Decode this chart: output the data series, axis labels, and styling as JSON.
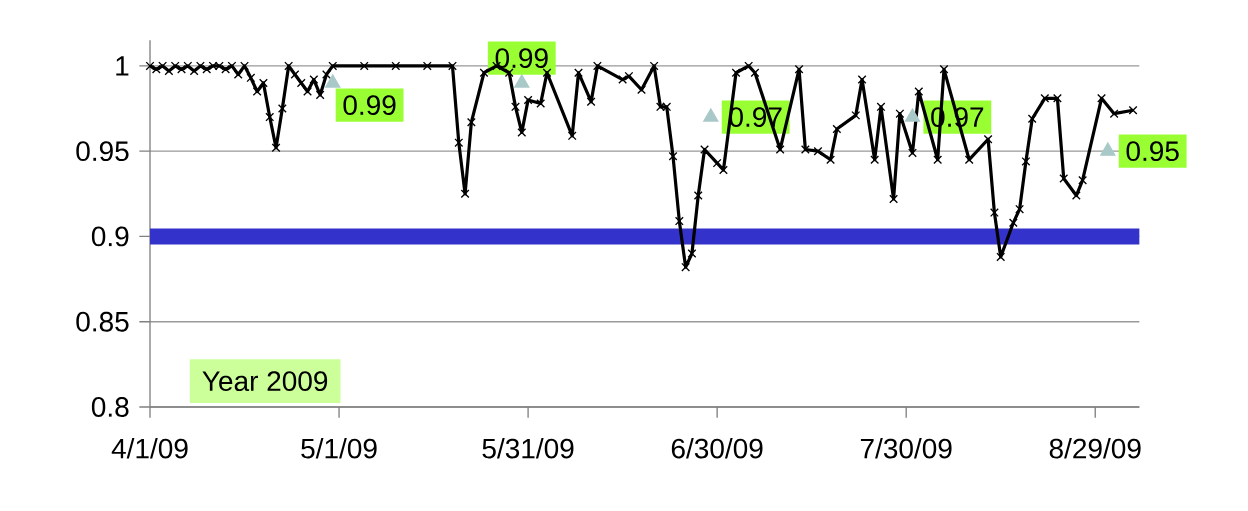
{
  "chart_data": {
    "type": "line",
    "xlim": [
      "2009-04-01",
      "2009-09-05"
    ],
    "xticks": [
      {
        "value": "2009-04-01",
        "label": "4/1/09"
      },
      {
        "value": "2009-05-01",
        "label": "5/1/09"
      },
      {
        "value": "2009-05-31",
        "label": "5/31/09"
      },
      {
        "value": "2009-06-30",
        "label": "6/30/09"
      },
      {
        "value": "2009-07-30",
        "label": "7/30/09"
      },
      {
        "value": "2009-08-29",
        "label": "8/29/09"
      }
    ],
    "ylim": [
      0.8,
      1.015
    ],
    "yticks": [
      0.8,
      0.85,
      0.9,
      0.95,
      1
    ],
    "grid": "y",
    "series": [
      {
        "color": "#000000",
        "marker": "cross",
        "line_style": "solid",
        "x": [
          "2009-04-01",
          "2009-04-02",
          "2009-04-03",
          "2009-04-04",
          "2009-04-05",
          "2009-04-06",
          "2009-04-07",
          "2009-04-08",
          "2009-04-09",
          "2009-04-10",
          "2009-04-11",
          "2009-04-12",
          "2009-04-13",
          "2009-04-14",
          "2009-04-15",
          "2009-04-16",
          "2009-04-17",
          "2009-04-18",
          "2009-04-19",
          "2009-04-20",
          "2009-04-21",
          "2009-04-22",
          "2009-04-23",
          "2009-04-24",
          "2009-04-25",
          "2009-04-26",
          "2009-04-27",
          "2009-04-28",
          "2009-04-29",
          "2009-04-30",
          "2009-05-05",
          "2009-05-10",
          "2009-05-15",
          "2009-05-19",
          "2009-05-20",
          "2009-05-21",
          "2009-05-22",
          "2009-05-24",
          "2009-05-26",
          "2009-05-28",
          "2009-05-29",
          "2009-05-30",
          "2009-05-31",
          "2009-06-02",
          "2009-06-03",
          "2009-06-07",
          "2009-06-08",
          "2009-06-10",
          "2009-06-11",
          "2009-06-15",
          "2009-06-16",
          "2009-06-18",
          "2009-06-20",
          "2009-06-21",
          "2009-06-22",
          "2009-06-23",
          "2009-06-24",
          "2009-06-25",
          "2009-06-26",
          "2009-06-27",
          "2009-06-28",
          "2009-06-30",
          "2009-07-01",
          "2009-07-03",
          "2009-07-05",
          "2009-07-06",
          "2009-07-10",
          "2009-07-13",
          "2009-07-14",
          "2009-07-16",
          "2009-07-18",
          "2009-07-19",
          "2009-07-22",
          "2009-07-23",
          "2009-07-25",
          "2009-07-26",
          "2009-07-28",
          "2009-07-29",
          "2009-07-31",
          "2009-08-01",
          "2009-08-04",
          "2009-08-05",
          "2009-08-09",
          "2009-08-12",
          "2009-08-13",
          "2009-08-14",
          "2009-08-16",
          "2009-08-17",
          "2009-08-18",
          "2009-08-19",
          "2009-08-21",
          "2009-08-23",
          "2009-08-24",
          "2009-08-26",
          "2009-08-27",
          "2009-08-30",
          "2009-09-01",
          "2009-09-04"
        ],
        "values": [
          1.0,
          0.998,
          1.0,
          0.997,
          1.0,
          0.998,
          1.0,
          0.997,
          1.0,
          0.998,
          1.0,
          1.0,
          0.998,
          1.0,
          0.995,
          1.0,
          0.993,
          0.985,
          0.99,
          0.97,
          0.952,
          0.975,
          1.0,
          0.995,
          0.99,
          0.985,
          0.992,
          0.983,
          0.995,
          1.0,
          1.0,
          1.0,
          1.0,
          1.0,
          0.955,
          0.925,
          0.967,
          0.996,
          1.0,
          0.996,
          0.976,
          0.961,
          0.98,
          0.978,
          0.996,
          0.959,
          0.996,
          0.979,
          1.0,
          0.992,
          0.994,
          0.986,
          1.0,
          0.976,
          0.976,
          0.947,
          0.909,
          0.882,
          0.89,
          0.924,
          0.951,
          0.943,
          0.939,
          0.996,
          1.0,
          0.996,
          0.951,
          0.998,
          0.951,
          0.95,
          0.945,
          0.963,
          0.971,
          0.992,
          0.945,
          0.976,
          0.922,
          0.972,
          0.949,
          0.985,
          0.945,
          0.998,
          0.945,
          0.957,
          0.914,
          0.888,
          0.908,
          0.916,
          0.944,
          0.969,
          0.981,
          0.981,
          0.934,
          0.924,
          0.933,
          0.981,
          0.972,
          0.974
        ]
      },
      {
        "type": "scatter",
        "color": "#a9c9c9",
        "marker": "triangle",
        "x": [
          "2009-04-30",
          "2009-05-30",
          "2009-06-29",
          "2009-07-31",
          "2009-08-31"
        ],
        "values": [
          0.99,
          0.99,
          0.97,
          0.97,
          0.95
        ],
        "value_labels": [
          "0.99",
          "0.99",
          "0.97",
          "0.97",
          "0.95"
        ]
      }
    ],
    "ref_lines": [
      {
        "axis": "y",
        "value": 0.9,
        "color": "#3333cc"
      }
    ],
    "annotations": [
      "Year 2009"
    ]
  }
}
